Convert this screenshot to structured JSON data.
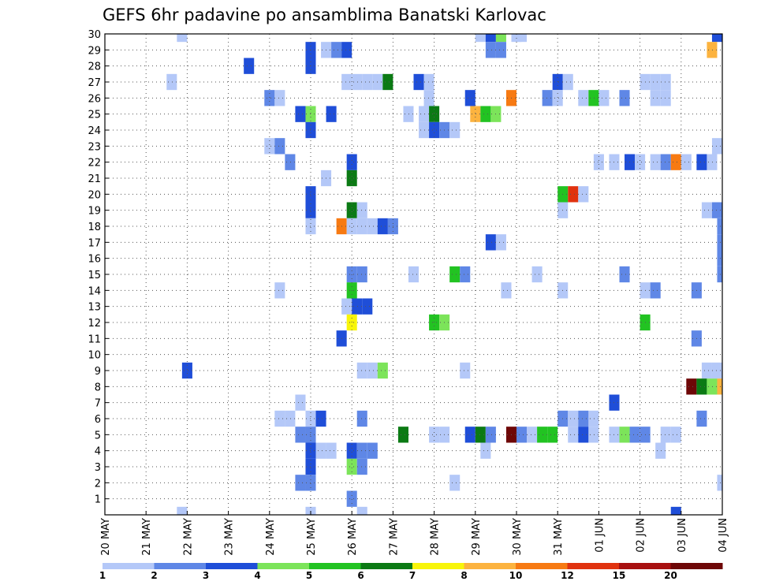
{
  "chart_data": {
    "type": "heatmap",
    "title": "GEFS 6hr padavine po ansamblima Banatski Karlovac",
    "x_tick_labels": [
      "20 MAY",
      "21 MAY",
      "22 MAY",
      "23 MAY",
      "24 MAY",
      "25 MAY",
      "26 MAY",
      "27 MAY",
      "28 MAY",
      "29 MAY",
      "30 MAY",
      "31 MAY",
      "01 JUN",
      "02 JUN",
      "03 JUN",
      "04 JUN"
    ],
    "y_tick_labels": [
      "1",
      "2",
      "3",
      "4",
      "5",
      "6",
      "7",
      "8",
      "9",
      "10",
      "11",
      "12",
      "13",
      "14",
      "15",
      "16",
      "17",
      "18",
      "19",
      "20",
      "21",
      "22",
      "23",
      "24",
      "25",
      "26",
      "27",
      "28",
      "29",
      "30"
    ],
    "xlim": [
      0,
      60
    ],
    "ylim": [
      0,
      30
    ],
    "grid": true,
    "note": "x = 6-hour step index (4 steps per day, 0 = 20 MAY); y = ensemble member",
    "colorbar": {
      "ticks": [
        "1",
        "2",
        "3",
        "4",
        "5",
        "6",
        "7",
        "8",
        "10",
        "12",
        "15",
        "20"
      ],
      "colors": [
        "#b4c8f8",
        "#5f87e6",
        "#1f4ed8",
        "#7ce45a",
        "#22c322",
        "#0b7a14",
        "#f8f50a",
        "#fcb33f",
        "#f77a12",
        "#e0320f",
        "#a81010",
        "#6e0707"
      ]
    },
    "cells": [
      [
        7.5,
        30,
        0
      ],
      [
        36.5,
        30,
        0
      ],
      [
        37.5,
        30,
        2
      ],
      [
        38.5,
        30,
        3
      ],
      [
        40,
        30,
        0
      ],
      [
        40.5,
        30,
        0
      ],
      [
        59.5,
        30,
        2
      ],
      [
        20,
        29,
        2
      ],
      [
        21.5,
        29,
        0
      ],
      [
        22.5,
        29,
        1
      ],
      [
        23.5,
        29,
        2
      ],
      [
        37.5,
        29,
        1
      ],
      [
        38.5,
        29,
        1
      ],
      [
        59,
        29,
        7
      ],
      [
        14,
        28,
        2
      ],
      [
        20,
        28,
        2
      ],
      [
        6.5,
        27,
        0
      ],
      [
        23.5,
        27,
        0
      ],
      [
        24.5,
        27,
        0
      ],
      [
        25.5,
        27,
        0
      ],
      [
        26.5,
        27,
        0
      ],
      [
        27.5,
        27,
        5
      ],
      [
        30.5,
        27,
        2
      ],
      [
        31.5,
        27,
        0
      ],
      [
        44,
        27,
        2
      ],
      [
        45,
        27,
        0
      ],
      [
        52.5,
        27,
        0
      ],
      [
        53.5,
        27,
        0
      ],
      [
        54.5,
        27,
        0
      ],
      [
        16,
        26,
        1
      ],
      [
        17,
        26,
        0
      ],
      [
        31.5,
        26,
        0
      ],
      [
        35.5,
        26,
        2
      ],
      [
        39.5,
        26,
        8
      ],
      [
        43,
        26,
        1
      ],
      [
        44,
        26,
        0
      ],
      [
        46.5,
        26,
        0
      ],
      [
        47.5,
        26,
        4
      ],
      [
        48.5,
        26,
        0
      ],
      [
        50.5,
        26,
        1
      ],
      [
        53.5,
        26,
        0
      ],
      [
        54.5,
        26,
        0
      ],
      [
        19,
        25,
        2
      ],
      [
        20,
        25,
        3
      ],
      [
        22,
        25,
        2
      ],
      [
        29.5,
        25,
        0
      ],
      [
        31,
        25,
        0
      ],
      [
        32,
        25,
        5
      ],
      [
        36,
        25,
        7
      ],
      [
        37,
        25,
        4
      ],
      [
        38,
        25,
        3
      ],
      [
        20,
        24,
        2
      ],
      [
        31,
        24,
        0
      ],
      [
        32,
        24,
        2
      ],
      [
        33,
        24,
        1
      ],
      [
        34,
        24,
        0
      ],
      [
        16,
        23,
        0
      ],
      [
        17,
        23,
        1
      ],
      [
        59.5,
        23,
        0
      ],
      [
        18,
        22,
        1
      ],
      [
        24,
        22,
        2
      ],
      [
        48,
        22,
        0
      ],
      [
        49.5,
        22,
        0
      ],
      [
        51,
        22,
        2
      ],
      [
        52,
        22,
        0
      ],
      [
        53.5,
        22,
        0
      ],
      [
        54.5,
        22,
        1
      ],
      [
        55.5,
        22,
        8
      ],
      [
        56.5,
        22,
        0
      ],
      [
        58,
        22,
        2
      ],
      [
        59,
        22,
        0
      ],
      [
        21.5,
        21,
        0
      ],
      [
        24,
        21,
        5
      ],
      [
        20,
        20,
        2
      ],
      [
        44.5,
        20,
        4
      ],
      [
        45.5,
        20,
        9
      ],
      [
        46.5,
        20,
        0
      ],
      [
        20,
        19,
        2
      ],
      [
        24,
        19,
        5
      ],
      [
        25,
        19,
        0
      ],
      [
        44.5,
        19,
        0
      ],
      [
        58.5,
        19,
        0
      ],
      [
        59.5,
        19,
        1
      ],
      [
        20,
        18,
        0
      ],
      [
        23,
        18,
        8
      ],
      [
        24,
        18,
        0
      ],
      [
        25,
        18,
        0
      ],
      [
        26,
        18,
        0
      ],
      [
        27,
        18,
        2
      ],
      [
        28,
        18,
        1
      ],
      [
        60,
        18,
        1
      ],
      [
        37.5,
        17,
        2
      ],
      [
        38.5,
        17,
        0
      ],
      [
        60,
        17,
        1
      ],
      [
        60,
        16,
        1
      ],
      [
        24,
        15,
        1
      ],
      [
        25,
        15,
        1
      ],
      [
        30,
        15,
        0
      ],
      [
        34,
        15,
        4
      ],
      [
        35,
        15,
        1
      ],
      [
        42,
        15,
        0
      ],
      [
        50.5,
        15,
        1
      ],
      [
        60,
        15,
        1
      ],
      [
        17,
        14,
        0
      ],
      [
        24,
        14,
        4
      ],
      [
        39,
        14,
        0
      ],
      [
        44.5,
        14,
        0
      ],
      [
        52.5,
        14,
        0
      ],
      [
        53.5,
        14,
        1
      ],
      [
        57.5,
        14,
        1
      ],
      [
        23.5,
        13,
        0
      ],
      [
        24.5,
        13,
        2
      ],
      [
        25.5,
        13,
        2
      ],
      [
        24,
        12,
        6
      ],
      [
        32,
        12,
        4
      ],
      [
        33,
        12,
        3
      ],
      [
        52.5,
        12,
        4
      ],
      [
        23,
        11,
        2
      ],
      [
        57.5,
        11,
        1
      ],
      [
        8,
        9,
        2
      ],
      [
        25,
        9,
        0
      ],
      [
        26,
        9,
        0
      ],
      [
        27,
        9,
        3
      ],
      [
        35,
        9,
        0
      ],
      [
        58.5,
        9,
        0
      ],
      [
        59.5,
        9,
        0
      ],
      [
        57,
        8,
        11
      ],
      [
        58,
        8,
        5
      ],
      [
        59,
        8,
        3
      ],
      [
        60,
        8,
        7
      ],
      [
        19,
        7,
        0
      ],
      [
        49.5,
        7,
        2
      ],
      [
        17,
        6,
        0
      ],
      [
        18,
        6,
        0
      ],
      [
        20,
        6,
        0
      ],
      [
        21,
        6,
        2
      ],
      [
        25,
        6,
        1
      ],
      [
        44.5,
        6,
        1
      ],
      [
        45.5,
        6,
        0
      ],
      [
        46.5,
        6,
        1
      ],
      [
        47.5,
        6,
        0
      ],
      [
        58,
        6,
        1
      ],
      [
        19,
        5,
        1
      ],
      [
        20,
        5,
        1
      ],
      [
        29,
        5,
        5
      ],
      [
        32,
        5,
        0
      ],
      [
        33,
        5,
        0
      ],
      [
        35.5,
        5,
        2
      ],
      [
        36.5,
        5,
        5
      ],
      [
        37.5,
        5,
        1
      ],
      [
        39.5,
        5,
        11
      ],
      [
        40.5,
        5,
        1
      ],
      [
        41.5,
        5,
        0
      ],
      [
        42.5,
        5,
        4
      ],
      [
        43.5,
        5,
        4
      ],
      [
        45.5,
        5,
        0
      ],
      [
        46.5,
        5,
        2
      ],
      [
        47.5,
        5,
        0
      ],
      [
        49.5,
        5,
        0
      ],
      [
        50.5,
        5,
        3
      ],
      [
        51.5,
        5,
        1
      ],
      [
        52.5,
        5,
        1
      ],
      [
        54.5,
        5,
        0
      ],
      [
        55.5,
        5,
        0
      ],
      [
        20,
        4,
        2
      ],
      [
        21,
        4,
        0
      ],
      [
        22,
        4,
        0
      ],
      [
        24,
        4,
        2
      ],
      [
        25,
        4,
        1
      ],
      [
        26,
        4,
        1
      ],
      [
        37,
        4,
        0
      ],
      [
        54,
        4,
        0
      ],
      [
        20,
        3,
        2
      ],
      [
        24,
        3,
        3
      ],
      [
        25,
        3,
        1
      ],
      [
        19,
        2,
        1
      ],
      [
        20,
        2,
        1
      ],
      [
        34,
        2,
        0
      ],
      [
        60,
        2,
        0
      ],
      [
        24,
        1,
        1
      ],
      [
        7.5,
        0,
        0
      ],
      [
        20,
        0,
        0
      ],
      [
        25,
        0,
        0
      ],
      [
        55.5,
        0,
        2
      ]
    ]
  }
}
